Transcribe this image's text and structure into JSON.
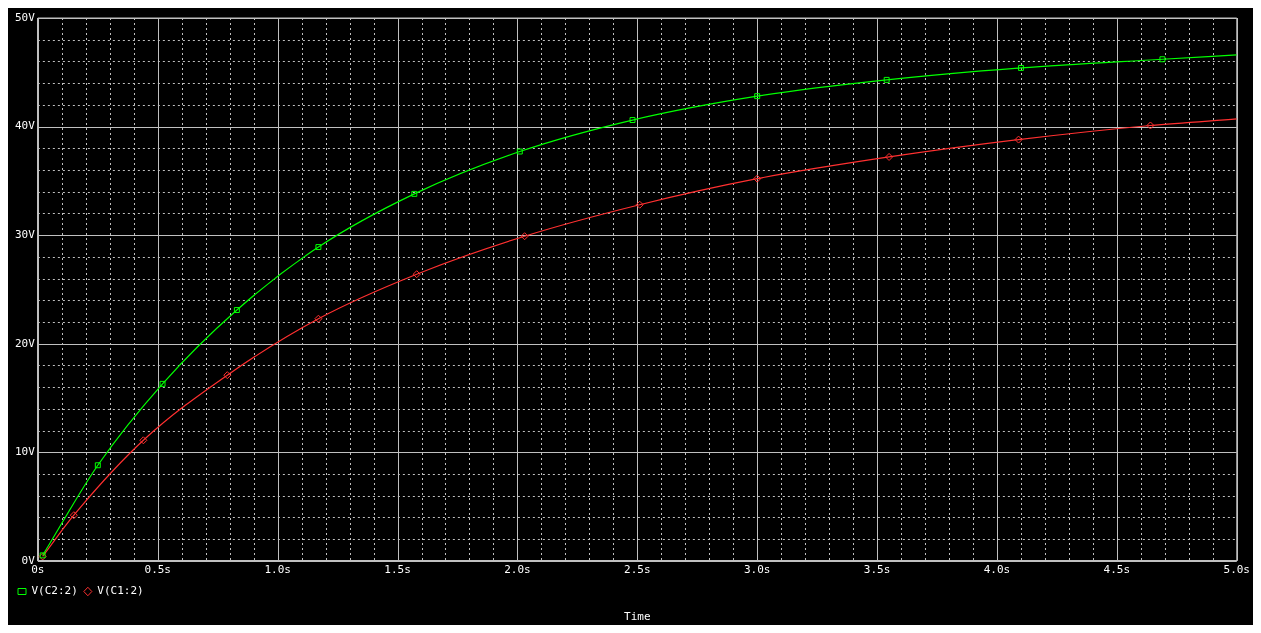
{
  "chart_data": {
    "type": "line",
    "xlabel": "Time",
    "legend": "bottom left",
    "grid": true,
    "line_style": "solid",
    "xlim": [
      0,
      5
    ],
    "ylim": [
      0,
      50
    ],
    "xticks": [
      {
        "value": 0,
        "label": "0s"
      },
      {
        "value": 0.1,
        "label": null
      },
      {
        "value": 0.2,
        "label": null
      },
      {
        "value": 0.3,
        "label": null
      },
      {
        "value": 0.4,
        "label": null
      },
      {
        "value": 0.5,
        "label": "0.5s"
      },
      {
        "value": 0.6,
        "label": null
      },
      {
        "value": 0.7,
        "label": null
      },
      {
        "value": 0.8,
        "label": null
      },
      {
        "value": 0.9,
        "label": null
      },
      {
        "value": 1,
        "label": "1.0s"
      },
      {
        "value": 1.1,
        "label": null
      },
      {
        "value": 1.2,
        "label": null
      },
      {
        "value": 1.3,
        "label": null
      },
      {
        "value": 1.4,
        "label": null
      },
      {
        "value": 1.5,
        "label": "1.5s"
      },
      {
        "value": 1.6,
        "label": null
      },
      {
        "value": 1.7,
        "label": null
      },
      {
        "value": 1.8,
        "label": null
      },
      {
        "value": 1.9,
        "label": null
      },
      {
        "value": 2,
        "label": "2.0s"
      },
      {
        "value": 2.1,
        "label": null
      },
      {
        "value": 2.2,
        "label": null
      },
      {
        "value": 2.3,
        "label": null
      },
      {
        "value": 2.4,
        "label": null
      },
      {
        "value": 2.5,
        "label": "2.5s"
      },
      {
        "value": 2.6,
        "label": null
      },
      {
        "value": 2.7,
        "label": null
      },
      {
        "value": 2.8,
        "label": null
      },
      {
        "value": 2.9,
        "label": null
      },
      {
        "value": 3,
        "label": "3.0s"
      },
      {
        "value": 3.1,
        "label": null
      },
      {
        "value": 3.2,
        "label": null
      },
      {
        "value": 3.3,
        "label": null
      },
      {
        "value": 3.4,
        "label": null
      },
      {
        "value": 3.5,
        "label": "3.5s"
      },
      {
        "value": 3.6,
        "label": null
      },
      {
        "value": 3.7,
        "label": null
      },
      {
        "value": 3.8,
        "label": null
      },
      {
        "value": 3.9,
        "label": null
      },
      {
        "value": 4,
        "label": "4.0s"
      },
      {
        "value": 4.1,
        "label": null
      },
      {
        "value": 4.2,
        "label": null
      },
      {
        "value": 4.3,
        "label": null
      },
      {
        "value": 4.4,
        "label": null
      },
      {
        "value": 4.5,
        "label": "4.5s"
      },
      {
        "value": 4.6,
        "label": null
      },
      {
        "value": 4.7,
        "label": null
      },
      {
        "value": 4.8,
        "label": null
      },
      {
        "value": 4.9,
        "label": null
      },
      {
        "value": 5,
        "label": "5.0s"
      }
    ],
    "yticks": [
      {
        "value": 0,
        "label": "0V"
      },
      {
        "value": 2,
        "label": null
      },
      {
        "value": 4,
        "label": null
      },
      {
        "value": 6,
        "label": null
      },
      {
        "value": 8,
        "label": null
      },
      {
        "value": 10,
        "label": "10V"
      },
      {
        "value": 12,
        "label": null
      },
      {
        "value": 14,
        "label": null
      },
      {
        "value": 16,
        "label": null
      },
      {
        "value": 18,
        "label": null
      },
      {
        "value": 20,
        "label": "20V"
      },
      {
        "value": 22,
        "label": null
      },
      {
        "value": 24,
        "label": null
      },
      {
        "value": 26,
        "label": null
      },
      {
        "value": 28,
        "label": null
      },
      {
        "value": 30,
        "label": "30V"
      },
      {
        "value": 32,
        "label": null
      },
      {
        "value": 34,
        "label": null
      },
      {
        "value": 36,
        "label": null
      },
      {
        "value": 38,
        "label": null
      },
      {
        "value": 40,
        "label": "40V"
      },
      {
        "value": 42,
        "label": null
      },
      {
        "value": 44,
        "label": null
      },
      {
        "value": 46,
        "label": null
      },
      {
        "value": 48,
        "label": null
      },
      {
        "value": 50,
        "label": "50V"
      }
    ],
    "series": [
      {
        "name": "V(C2:2)",
        "color": "#00ff00",
        "marker": "square",
        "x": [
          0.02,
          0.25,
          0.52,
          0.83,
          1.17,
          1.57,
          2.01,
          2.48,
          3.0,
          3.54,
          4.1,
          4.69,
          5.0
        ],
        "values": [
          0.5,
          8.8,
          16.3,
          23.1,
          28.9,
          33.8,
          37.7,
          40.6,
          42.8,
          44.3,
          45.4,
          46.2,
          46.6
        ]
      },
      {
        "name": "V(C1:2)",
        "color": "#ff3030",
        "marker": "diamond",
        "x": [
          0.02,
          0.15,
          0.44,
          0.79,
          1.17,
          1.58,
          2.03,
          2.51,
          3.0,
          3.55,
          4.09,
          4.64,
          5.0
        ],
        "values": [
          0.4,
          4.2,
          11.1,
          17.1,
          22.3,
          26.4,
          29.9,
          32.8,
          35.2,
          37.2,
          38.8,
          40.1,
          40.7
        ]
      }
    ]
  }
}
